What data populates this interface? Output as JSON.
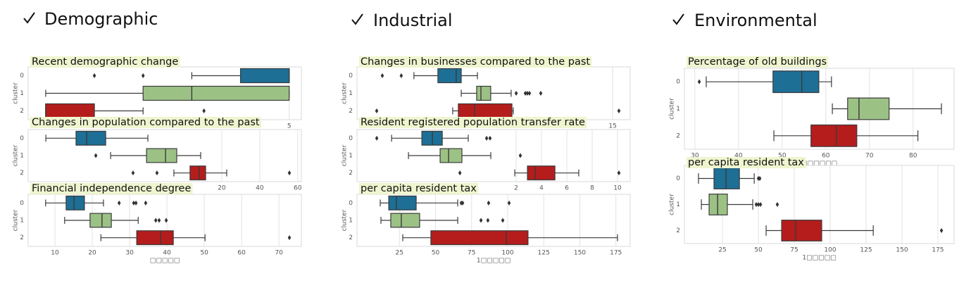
{
  "sections": [
    {
      "heading": "Demographic"
    },
    {
      "heading": "Industrial"
    },
    {
      "heading": "Environmental"
    }
  ],
  "chart_data": [
    {
      "type": "boxplot",
      "title": "Recent demographic change",
      "ylabel": "cluster",
      "categories": [
        "0",
        "1",
        "2"
      ],
      "colors": [
        "#1d6f96",
        "#9cc185",
        "#b51c1c"
      ],
      "xlim": [
        -0.36,
        5.25
      ],
      "xticks": [
        5
      ],
      "grid": true,
      "boxes": [
        {
          "whislo": 3,
          "q1": 4,
          "med": 5,
          "q3": 5,
          "whishi": 5,
          "fliers": [
            1,
            2
          ]
        },
        {
          "whislo": 0,
          "q1": 2,
          "med": 3,
          "q3": 5,
          "whishi": 5,
          "fliers": []
        },
        {
          "whislo": 0,
          "q1": 0,
          "med": 0,
          "q3": 1,
          "whishi": 2,
          "fliers": [
            3.25
          ]
        }
      ]
    },
    {
      "type": "boxplot",
      "title": "Changes in population compared to the past",
      "ylabel": "cluster",
      "categories": [
        "0",
        "1",
        "2"
      ],
      "colors": [
        "#1d6f96",
        "#9cc185",
        "#b51c1c"
      ],
      "xlim": [
        -81.9,
        61.9
      ],
      "xticks": [
        20,
        40,
        60
      ],
      "grid": true,
      "boxes": [
        {
          "whislo": -72.6,
          "q1": -56.7,
          "med": -51.1,
          "q3": -41.1,
          "whishi": -18.9,
          "fliers": []
        },
        {
          "whislo": -38.5,
          "q1": -19.6,
          "med": -9.6,
          "q3": -3.7,
          "whishi": 8.9,
          "fliers": [
            -46.3
          ]
        },
        {
          "whislo": -5.2,
          "q1": 3.3,
          "med": 8.1,
          "q3": 11.5,
          "whishi": 22.6,
          "fliers": [
            -26.7,
            -14.1,
            55.6
          ]
        }
      ]
    },
    {
      "type": "boxplot",
      "title": "Financial independence degree",
      "ylabel": "cluster",
      "categories": [
        "0",
        "1",
        "2"
      ],
      "colors": [
        "#1d6f96",
        "#9cc185",
        "#b51c1c"
      ],
      "xlim": [
        2.83,
        76.0
      ],
      "xticks": [
        10,
        20,
        30,
        40,
        50,
        60,
        70
      ],
      "grid": true,
      "xlabel": "□□□□□",
      "boxes": [
        {
          "whislo": 7.5,
          "q1": 13,
          "med": 15.1,
          "q3": 17.9,
          "whishi": 23,
          "fliers": [
            27.2,
            31.1,
            31.7,
            34.3
          ]
        },
        {
          "whislo": 12.6,
          "q1": 19.4,
          "med": 22.6,
          "q3": 25.1,
          "whishi": 32.3,
          "fliers": [
            37,
            37.9,
            39.8
          ]
        },
        {
          "whislo": 22.3,
          "q1": 31.9,
          "med": 38.3,
          "q3": 41.7,
          "whishi": 50.2,
          "fliers": [
            72.8
          ]
        }
      ]
    },
    {
      "type": "boxplot",
      "title": "Changes in businesses compared to the past",
      "ylabel": "cluster",
      "categories": [
        "0",
        "1",
        "2"
      ],
      "colors": [
        "#1d6f96",
        "#9cc185",
        "#b51c1c"
      ],
      "xlim": [
        -1.75,
        16.15
      ],
      "xticks": [
        15
      ],
      "grid": true,
      "boxes": [
        {
          "whislo": 1.98,
          "q1": 3.55,
          "med": 4.75,
          "q3": 5.08,
          "whishi": 6.14,
          "fliers": [
            -0.09,
            1.15
          ]
        },
        {
          "whislo": 5.08,
          "q1": 6.09,
          "med": 6.37,
          "q3": 7.01,
          "whishi": 8.35,
          "fliers": [
            8.68,
            9.28,
            9.41,
            9.55,
            10.29
          ]
        },
        {
          "whislo": 4.52,
          "q1": 4.89,
          "med": 5.95,
          "q3": 8.4,
          "whishi": 8.49,
          "fliers": [
            -0.46,
            15.41
          ]
        }
      ]
    },
    {
      "type": "boxplot",
      "title": "Resident registered population transfer rate",
      "ylabel": "cluster",
      "categories": [
        "0",
        "1",
        "2"
      ],
      "colors": [
        "#1d6f96",
        "#9cc185",
        "#b51c1c"
      ],
      "xlim": [
        -10.56,
        11
      ],
      "xticks": [
        2,
        4,
        6,
        8,
        10
      ],
      "grid": true,
      "boxes": [
        {
          "whislo": -7.83,
          "q1": -5.44,
          "med": -4.61,
          "q3": -3.83,
          "whishi": -1.78,
          "fliers": [
            -9,
            -0.33,
            -0.06
          ]
        },
        {
          "whislo": -6.5,
          "q1": -4,
          "med": -3.33,
          "q3": -2.28,
          "whishi": 0,
          "fliers": [
            2.33
          ]
        },
        {
          "whislo": 1.89,
          "q1": 2.89,
          "med": 3.5,
          "q3": 5.06,
          "whishi": 6.94,
          "fliers": [
            -2.44,
            10.11
          ]
        }
      ]
    },
    {
      "type": "boxplot",
      "title": "per capita resident tax",
      "ylabel": "cluster",
      "categories": [
        "0",
        "1",
        "2"
      ],
      "colors": [
        "#1d6f96",
        "#9cc185",
        "#b51c1c"
      ],
      "xlim": [
        -4.4,
        184.9
      ],
      "xticks": [
        25,
        50,
        75,
        100,
        125,
        150,
        175
      ],
      "grid": true,
      "xlabel": "1□□□□□",
      "boxes": [
        {
          "whislo": 11.7,
          "q1": 17.6,
          "med": 22.9,
          "q3": 36.6,
          "whishi": 65.4,
          "fliers": [
            67.8,
            68.8,
            86.8,
            101
          ]
        },
        {
          "whislo": 12.2,
          "q1": 19,
          "med": 26.3,
          "q3": 39,
          "whishi": 65.4,
          "fliers": [
            81.5,
            86.3,
            96.6
          ]
        },
        {
          "whislo": 27.3,
          "q1": 46.8,
          "med": 99,
          "q3": 114.1,
          "whishi": 176.1,
          "fliers": []
        }
      ]
    },
    {
      "type": "boxplot",
      "title": "Percentage of old buildings",
      "ylabel": "cluster",
      "categories": [
        "0",
        "1",
        "2"
      ],
      "colors": [
        "#1d6f96",
        "#9cc185",
        "#b51c1c"
      ],
      "xlim": [
        27.6,
        89.4
      ],
      "xticks": [
        30,
        40,
        50,
        60,
        70,
        80
      ],
      "grid": true,
      "xlabel": "□□□□□□",
      "boxes": [
        {
          "whislo": 32.6,
          "q1": 47.9,
          "med": 54.5,
          "q3": 58.4,
          "whishi": 61.3,
          "fliers": [
            31
          ]
        },
        {
          "whislo": 61.5,
          "q1": 65,
          "med": 67.6,
          "q3": 74.5,
          "whishi": 86.5,
          "fliers": []
        },
        {
          "whislo": 48.1,
          "q1": 56.6,
          "med": 62.4,
          "q3": 67.1,
          "whishi": 81.1,
          "fliers": []
        }
      ]
    },
    {
      "type": "boxplot",
      "title": "per capita resident tax",
      "ylabel": "cluster",
      "categories": [
        "0",
        "1",
        "2"
      ],
      "colors": [
        "#1d6f96",
        "#9cc185",
        "#b51c1c"
      ],
      "xlim": [
        -1.5,
        186.3
      ],
      "xticks": [
        25,
        50,
        75,
        100,
        125,
        150,
        175
      ],
      "grid": true,
      "xlabel": "1□□□□□",
      "boxes": [
        {
          "whislo": 8.3,
          "q1": 19.1,
          "med": 27.5,
          "q3": 36.8,
          "whishi": 47.1,
          "fliers": [
            50,
            51
          ]
        },
        {
          "whislo": 10.3,
          "q1": 15.7,
          "med": 21.6,
          "q3": 28.4,
          "whishi": 46.1,
          "fliers": [
            48.5,
            50,
            51.5,
            63.2
          ]
        },
        {
          "whislo": 55.4,
          "q1": 66.2,
          "med": 76,
          "q3": 94.1,
          "whishi": 130,
          "fliers": [
            177.5
          ]
        }
      ]
    }
  ]
}
